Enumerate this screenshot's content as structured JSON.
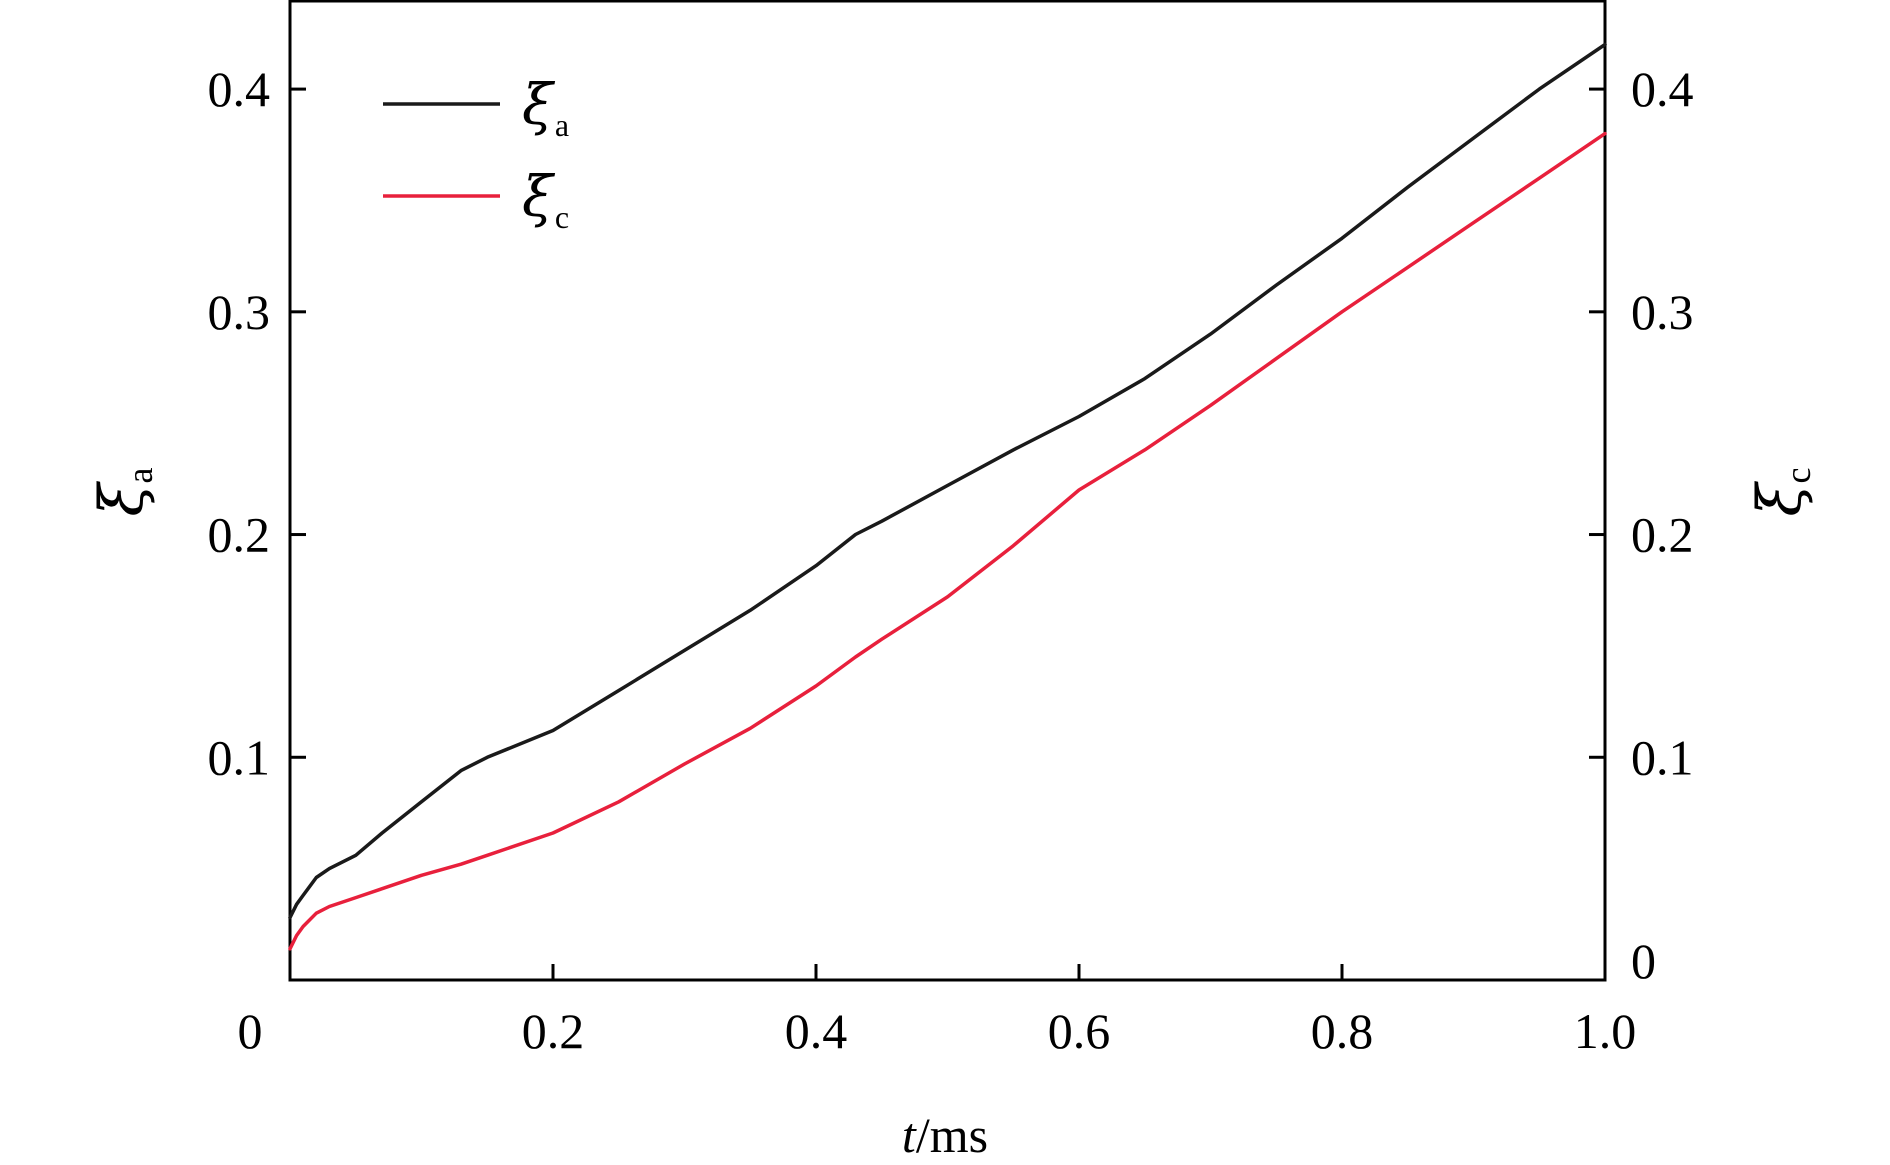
{
  "chart_data": {
    "type": "line",
    "x": [
      0,
      0.005,
      0.01,
      0.02,
      0.03,
      0.05,
      0.07,
      0.1,
      0.13,
      0.15,
      0.2,
      0.25,
      0.3,
      0.35,
      0.4,
      0.43,
      0.45,
      0.5,
      0.55,
      0.6,
      0.65,
      0.7,
      0.75,
      0.8,
      0.85,
      0.9,
      0.95,
      1.0
    ],
    "series": [
      {
        "name_symbol": "ξ",
        "name_sub": "a",
        "color": "#1a1a1a",
        "axis": "left",
        "values": [
          0.028,
          0.034,
          0.038,
          0.046,
          0.05,
          0.056,
          0.066,
          0.08,
          0.094,
          0.1,
          0.112,
          0.13,
          0.148,
          0.166,
          0.186,
          0.2,
          0.206,
          0.222,
          0.238,
          0.253,
          0.27,
          0.29,
          0.312,
          0.333,
          0.356,
          0.378,
          0.4,
          0.42
        ]
      },
      {
        "name_symbol": "ξ",
        "name_sub": "c",
        "color": "#e8203c",
        "axis": "right",
        "values": [
          0.014,
          0.02,
          0.024,
          0.03,
          0.033,
          0.037,
          0.041,
          0.047,
          0.052,
          0.056,
          0.066,
          0.08,
          0.097,
          0.113,
          0.132,
          0.145,
          0.153,
          0.172,
          0.195,
          0.22,
          0.238,
          0.258,
          0.279,
          0.3,
          0.32,
          0.34,
          0.36,
          0.38
        ]
      }
    ],
    "xlabel_italic": "t",
    "xlabel_rest": "/ms",
    "ylabel_left_symbol": "ξ",
    "ylabel_left_sub": "a",
    "ylabel_right_symbol": "ξ",
    "ylabel_right_sub": "c",
    "xlim": [
      0,
      1.0
    ],
    "ylim": [
      0,
      0.44
    ],
    "x_ticks": [
      0.2,
      0.4,
      0.6,
      0.8,
      1.0
    ],
    "x_tick_labels": [
      "0.2",
      "0.4",
      "0.6",
      "0.8",
      "1.0"
    ],
    "origin_label": "0",
    "y_left_ticks": [
      0.1,
      0.2,
      0.3,
      0.4
    ],
    "y_left_tick_labels": [
      "0.1",
      "0.2",
      "0.3",
      "0.4"
    ],
    "y_right_ticks": [
      0,
      0.1,
      0.2,
      0.3,
      0.4
    ],
    "y_right_tick_labels": [
      "0",
      "0.1",
      "0.2",
      "0.3",
      "0.4"
    ],
    "grid": false,
    "legend_position": "top-left"
  }
}
